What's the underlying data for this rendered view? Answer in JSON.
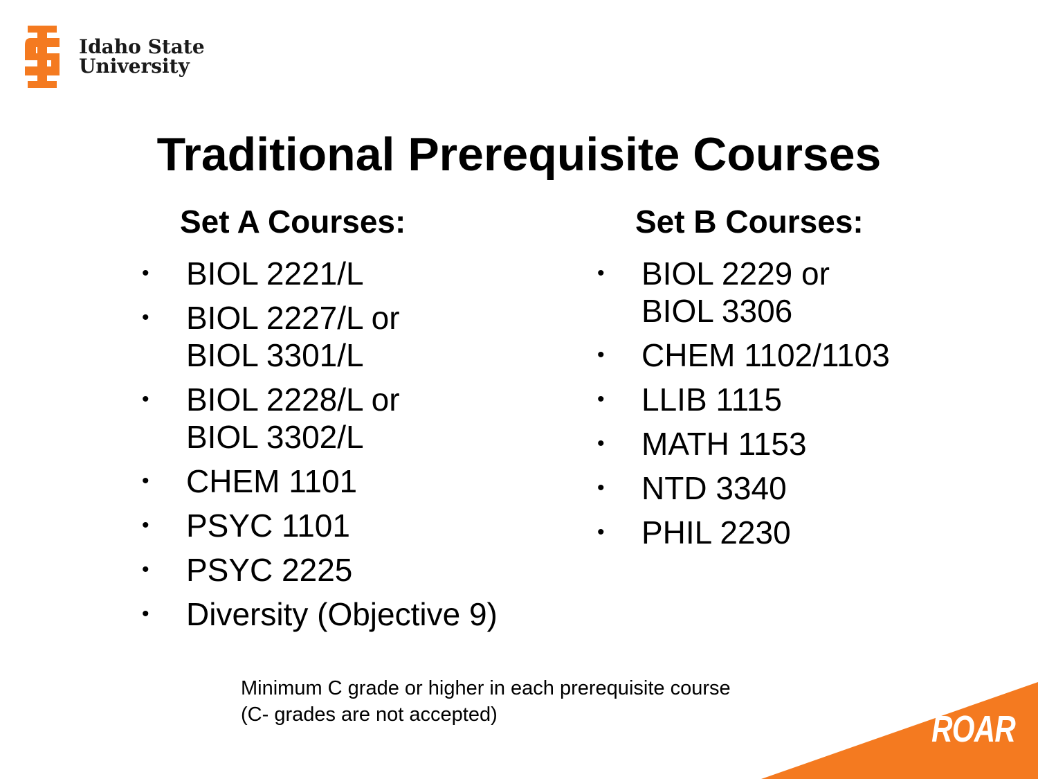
{
  "header": {
    "logo_line1": "Idaho State",
    "logo_line2": "University",
    "logo_mark_icon": "isu-logo-icon",
    "brand_color": "#F47A20"
  },
  "title": "Traditional Prerequisite Courses",
  "set_a": {
    "heading": "Set A Courses:",
    "items": [
      {
        "lines": [
          "BIOL 2221/L"
        ]
      },
      {
        "lines": [
          "BIOL 2227/L or",
          "BIOL 3301/L"
        ]
      },
      {
        "lines": [
          "BIOL 2228/L or",
          "BIOL 3302/L"
        ]
      },
      {
        "lines": [
          "CHEM 1101"
        ]
      },
      {
        "lines": [
          "PSYC 1101"
        ]
      },
      {
        "lines": [
          "PSYC 2225"
        ]
      },
      {
        "lines": [
          "Diversity (Objective 9)"
        ]
      }
    ]
  },
  "set_b": {
    "heading": "Set B Courses:",
    "items": [
      {
        "lines": [
          "BIOL 2229 or",
          "BIOL 3306"
        ]
      },
      {
        "lines": [
          "CHEM 1102/1103"
        ]
      },
      {
        "lines": [
          "LLIB 1115"
        ]
      },
      {
        "lines": [
          "MATH 1153"
        ]
      },
      {
        "lines": [
          "NTD 3340"
        ]
      },
      {
        "lines": [
          "PHIL 2230"
        ]
      }
    ]
  },
  "bullet_char": "•",
  "note": {
    "line1": "Minimum C grade or higher in each prerequisite course",
    "line2": "(C- grades are not accepted)"
  },
  "corner": {
    "label": "ROAR",
    "color": "#F47A20"
  }
}
